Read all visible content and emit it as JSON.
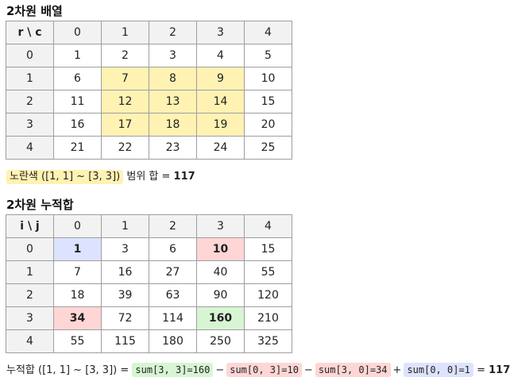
{
  "section1": {
    "title": "2차원 배열",
    "corner": "r \\ c",
    "col_headers": [
      "0",
      "1",
      "2",
      "3",
      "4"
    ],
    "row_headers": [
      "0",
      "1",
      "2",
      "3",
      "4"
    ],
    "rows": [
      [
        "1",
        "2",
        "3",
        "4",
        "5"
      ],
      [
        "6",
        "7",
        "8",
        "9",
        "10"
      ],
      [
        "11",
        "12",
        "13",
        "14",
        "15"
      ],
      [
        "16",
        "17",
        "18",
        "19",
        "20"
      ],
      [
        "21",
        "22",
        "23",
        "24",
        "25"
      ]
    ],
    "highlight_color": "#fff2b3",
    "note_highlight": "노란색 ([1, 1] ~ [3, 3])",
    "note_mid": "범위 합 =",
    "note_value": "117"
  },
  "section2": {
    "title": "2차원 누적합",
    "corner": "i \\ j",
    "col_headers": [
      "0",
      "1",
      "2",
      "3",
      "4"
    ],
    "row_headers": [
      "0",
      "1",
      "2",
      "3",
      "4"
    ],
    "rows": [
      [
        "1",
        "3",
        "6",
        "10",
        "15"
      ],
      [
        "7",
        "16",
        "27",
        "40",
        "55"
      ],
      [
        "18",
        "39",
        "63",
        "90",
        "120"
      ],
      [
        "34",
        "72",
        "114",
        "160",
        "210"
      ],
      [
        "55",
        "115",
        "180",
        "250",
        "325"
      ]
    ],
    "colors": {
      "green": "#d7f5d3",
      "red": "#ffd6d6",
      "blue": "#dde3ff"
    },
    "formula": {
      "lead": "누적합 ([1, 1] ~ [3, 3]) =",
      "term1": "sum[3, 3]=160",
      "op1": "−",
      "term2": "sum[0, 3]=10",
      "op2": "−",
      "term3": "sum[3, 0]=34",
      "op3": "+",
      "term4": "sum[0, 0]=1",
      "eq": "=",
      "result": "117"
    }
  }
}
